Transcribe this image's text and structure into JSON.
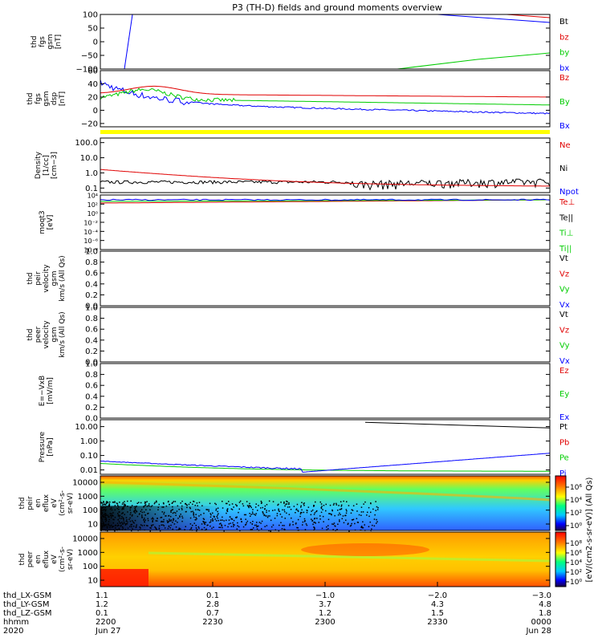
{
  "title": "P3 (TH-D) fields and ground moments overview",
  "colors": {
    "frame": "#000000",
    "red": "#e00000",
    "green": "#00cc00",
    "blue": "#0000ff",
    "black": "#000000",
    "yellow": "#ffff00"
  },
  "chart_data": [
    {
      "type": "line",
      "ylabel": [
        "thd",
        "fgs",
        "gsm",
        "[nT]"
      ],
      "yticks": [
        "100",
        "50",
        "0",
        "−50",
        "−100"
      ],
      "ylim": [
        -100,
        100
      ],
      "legend": [
        {
          "text": "Bt",
          "color": "#000000"
        },
        {
          "text": "bz",
          "color": "#e00000"
        },
        {
          "text": "by",
          "color": "#00cc00"
        },
        {
          "text": "bx",
          "color": "#0000ff"
        }
      ]
    },
    {
      "type": "line",
      "ylabel": [
        "thd",
        "fgs",
        "gsm",
        "dsp",
        "[nT]"
      ],
      "yticks": [
        "60",
        "40",
        "20",
        "0",
        "−20"
      ],
      "ylim": [
        -25,
        60
      ],
      "legend": [
        {
          "text": "Bz",
          "color": "#e00000"
        },
        {
          "text": "By",
          "color": "#00cc00"
        },
        {
          "text": "Bx",
          "color": "#0000ff"
        }
      ]
    },
    {
      "type": "line",
      "ylabel": [
        "Density",
        "[1/cc]",
        "[cm−3]"
      ],
      "yticks": [
        "100.0",
        "10.0",
        "1.0",
        "0.1"
      ],
      "ylim": [
        0.05,
        200
      ],
      "scale": "log",
      "legend": [
        {
          "text": "Ne",
          "color": "#e00000"
        },
        {
          "text": "Ni",
          "color": "#000000"
        },
        {
          "text": "Npot",
          "color": "#0000ff"
        }
      ]
    },
    {
      "type": "line",
      "ylabel": [
        "moqt3",
        "[eV]"
      ],
      "yticks": [
        "10⁴",
        "10²",
        "10⁰",
        "10⁻²",
        "10⁻⁴",
        "10⁻⁶",
        "10⁻⁸"
      ],
      "scale": "log",
      "legend": [
        {
          "text": "Te⊥",
          "color": "#e00000"
        },
        {
          "text": "Te||",
          "color": "#000000"
        },
        {
          "text": "Ti⊥",
          "color": "#00cc00"
        },
        {
          "text": "Ti||",
          "color": "#00cc00"
        }
      ]
    },
    {
      "type": "line",
      "ylabel": [
        "thd",
        "peir",
        "velocity",
        "gsm",
        "km/s (All Qs)"
      ],
      "yticks": [
        "1.0",
        "0.8",
        "0.6",
        "0.4",
        "0.2",
        "0.0"
      ],
      "ylim": [
        0,
        1
      ],
      "legend": [
        {
          "text": "Vt",
          "color": "#000000"
        },
        {
          "text": "Vz",
          "color": "#e00000"
        },
        {
          "text": "Vy",
          "color": "#00cc00"
        },
        {
          "text": "Vx",
          "color": "#0000ff"
        }
      ]
    },
    {
      "type": "line",
      "ylabel": [
        "thd",
        "peer",
        "velocity",
        "gsm",
        "km/s (All Qs)"
      ],
      "yticks": [
        "1.0",
        "0.8",
        "0.6",
        "0.4",
        "0.2",
        "0.0"
      ],
      "ylim": [
        0,
        1
      ],
      "legend": [
        {
          "text": "Vt",
          "color": "#000000"
        },
        {
          "text": "Vz",
          "color": "#e00000"
        },
        {
          "text": "Vy",
          "color": "#00cc00"
        },
        {
          "text": "Vx",
          "color": "#0000ff"
        }
      ]
    },
    {
      "type": "line",
      "ylabel": [
        "E=−VxB",
        "[mV/m]"
      ],
      "yticks": [
        "1.0",
        "0.8",
        "0.6",
        "0.4",
        "0.2",
        "0.0"
      ],
      "ylim": [
        0,
        1
      ],
      "legend": [
        {
          "text": "Ez",
          "color": "#e00000"
        },
        {
          "text": "Ey",
          "color": "#00cc00"
        },
        {
          "text": "Ex",
          "color": "#0000ff"
        }
      ]
    },
    {
      "type": "line",
      "ylabel": [
        "Pressure",
        "[nPa]"
      ],
      "yticks": [
        "10.00",
        "1.00",
        "0.10",
        "0.01"
      ],
      "ylim": [
        0.005,
        30
      ],
      "scale": "log",
      "legend": [
        {
          "text": "Pt",
          "color": "#000000"
        },
        {
          "text": "Pb",
          "color": "#e00000"
        },
        {
          "text": "Pe",
          "color": "#00cc00"
        },
        {
          "text": "Pi",
          "color": "#0000ff"
        }
      ]
    },
    {
      "type": "heatmap",
      "ylabel": [
        "thd",
        "peir",
        "en",
        "eflux",
        "eV",
        "(cm²-s-",
        "sr-eV)"
      ],
      "yticks": [
        "10000",
        "1000",
        "100",
        "10"
      ],
      "scale": "log",
      "colorbar_ticks": [
        "10⁶",
        "10⁴",
        "10²",
        "10⁰"
      ],
      "colorbar_label": "[eV/(cm2-s-sr-eV)] (All Qs)"
    },
    {
      "type": "heatmap",
      "ylabel": [
        "thd",
        "peer",
        "en",
        "eflux",
        "eV",
        "(cm²-s-",
        "sr-eV)"
      ],
      "yticks": [
        "10000",
        "1000",
        "100",
        "10"
      ],
      "scale": "log",
      "colorbar_ticks": [
        "10⁸",
        "10⁶",
        "10⁴",
        "10²",
        "10⁰"
      ]
    }
  ],
  "x_axis": {
    "row_labels": [
      "thd_LX-GSM",
      "thd_LY-GSM",
      "thd_LZ-GSM",
      "hhmm",
      "2020"
    ],
    "columns": [
      [
        "1.1",
        "1.2",
        "0.1",
        "2200",
        "Jun 27"
      ],
      [
        "0.1",
        "2.8",
        "0.7",
        "2230",
        ""
      ],
      [
        "−1.0",
        "3.7",
        "1.2",
        "2300",
        ""
      ],
      [
        "−2.0",
        "4.3",
        "1.5",
        "2330",
        ""
      ],
      [
        "−3.0",
        "4.8",
        "1.8",
        "0000",
        "Jun 28"
      ]
    ]
  }
}
